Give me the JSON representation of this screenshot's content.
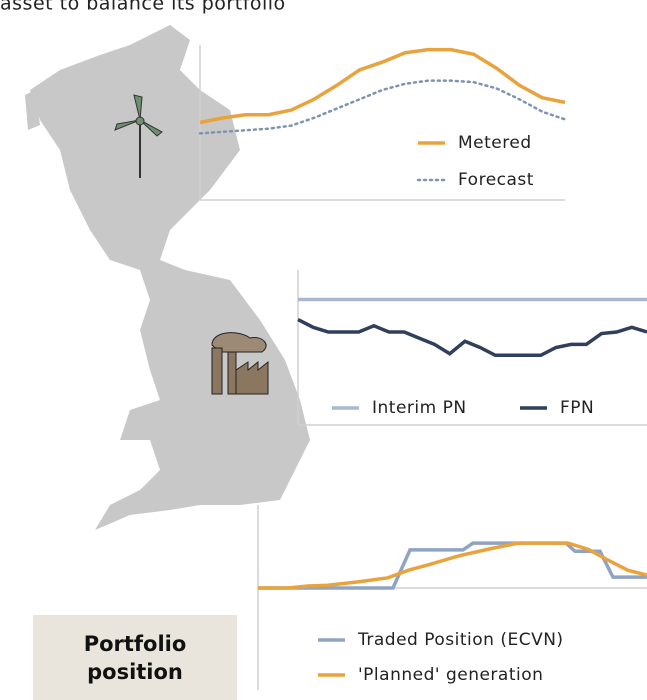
{
  "header": {
    "text": "asset to balance its portfolio"
  },
  "badge": {
    "text": "Portfolio position"
  },
  "chart_data": [
    {
      "type": "line",
      "x": [
        0,
        1,
        2,
        3,
        4,
        5,
        6,
        7,
        8,
        9,
        10,
        11,
        12,
        13,
        14,
        15,
        16
      ],
      "xlim": [
        0,
        16
      ],
      "ylim": [
        0,
        100
      ],
      "series": [
        {
          "name": "Metered",
          "color": "#e8a33d",
          "dash": "solid",
          "values": [
            50,
            53,
            55,
            55,
            58,
            65,
            74,
            84,
            89,
            95,
            97,
            97,
            94,
            85,
            74,
            66,
            63
          ]
        },
        {
          "name": "Forecast",
          "color": "#7f93b0",
          "dash": "dotted",
          "values": [
            43,
            44,
            45,
            46,
            48,
            53,
            59,
            65,
            71,
            75,
            77,
            77,
            76,
            72,
            65,
            57,
            52
          ]
        }
      ]
    },
    {
      "type": "line",
      "x": [
        0,
        1,
        2,
        3,
        4,
        5,
        6,
        7,
        8,
        9,
        10,
        11,
        12,
        13,
        14,
        15,
        16,
        17,
        18,
        19,
        20,
        21,
        22,
        23
      ],
      "xlim": [
        0,
        23
      ],
      "ylim": [
        0,
        100
      ],
      "series": [
        {
          "name": "Interim PN",
          "color": "#a7b8d0",
          "dash": "solid",
          "values": [
            81,
            81,
            81,
            81,
            81,
            81,
            81,
            81,
            81,
            81,
            81,
            81,
            81,
            81,
            81,
            81,
            81,
            81,
            81,
            81,
            81,
            81,
            81,
            81
          ]
        },
        {
          "name": "FPN",
          "color": "#2f3f5c",
          "dash": "solid",
          "values": [
            68,
            63,
            60,
            60,
            60,
            64,
            60,
            60,
            56,
            52,
            46,
            54,
            50,
            45,
            45,
            45,
            45,
            50,
            52,
            52,
            59,
            60,
            63,
            60
          ]
        }
      ]
    },
    {
      "type": "line",
      "xlim": [
        0,
        389
      ],
      "ylim": [
        0,
        100
      ],
      "series": [
        {
          "name": "Traded Position (ECVN)",
          "color": "#8fa3c3",
          "dash": "solid",
          "x": [
            0,
            135,
            152,
            205,
            215,
            308,
            317,
            342,
            355,
            389
          ],
          "values": [
            0,
            0,
            56,
            56,
            66,
            66,
            54,
            54,
            16,
            16
          ]
        },
        {
          "name": "'Planned' generation",
          "color": "#e8a33d",
          "dash": "solid",
          "x": [
            0,
            30,
            50,
            70,
            100,
            130,
            150,
            170,
            200,
            230,
            260,
            290,
            310,
            330,
            350,
            370,
            389
          ],
          "values": [
            0,
            0,
            3,
            4,
            9,
            15,
            26,
            34,
            47,
            57,
            66,
            66,
            66,
            57,
            41,
            26,
            19
          ]
        }
      ]
    }
  ]
}
